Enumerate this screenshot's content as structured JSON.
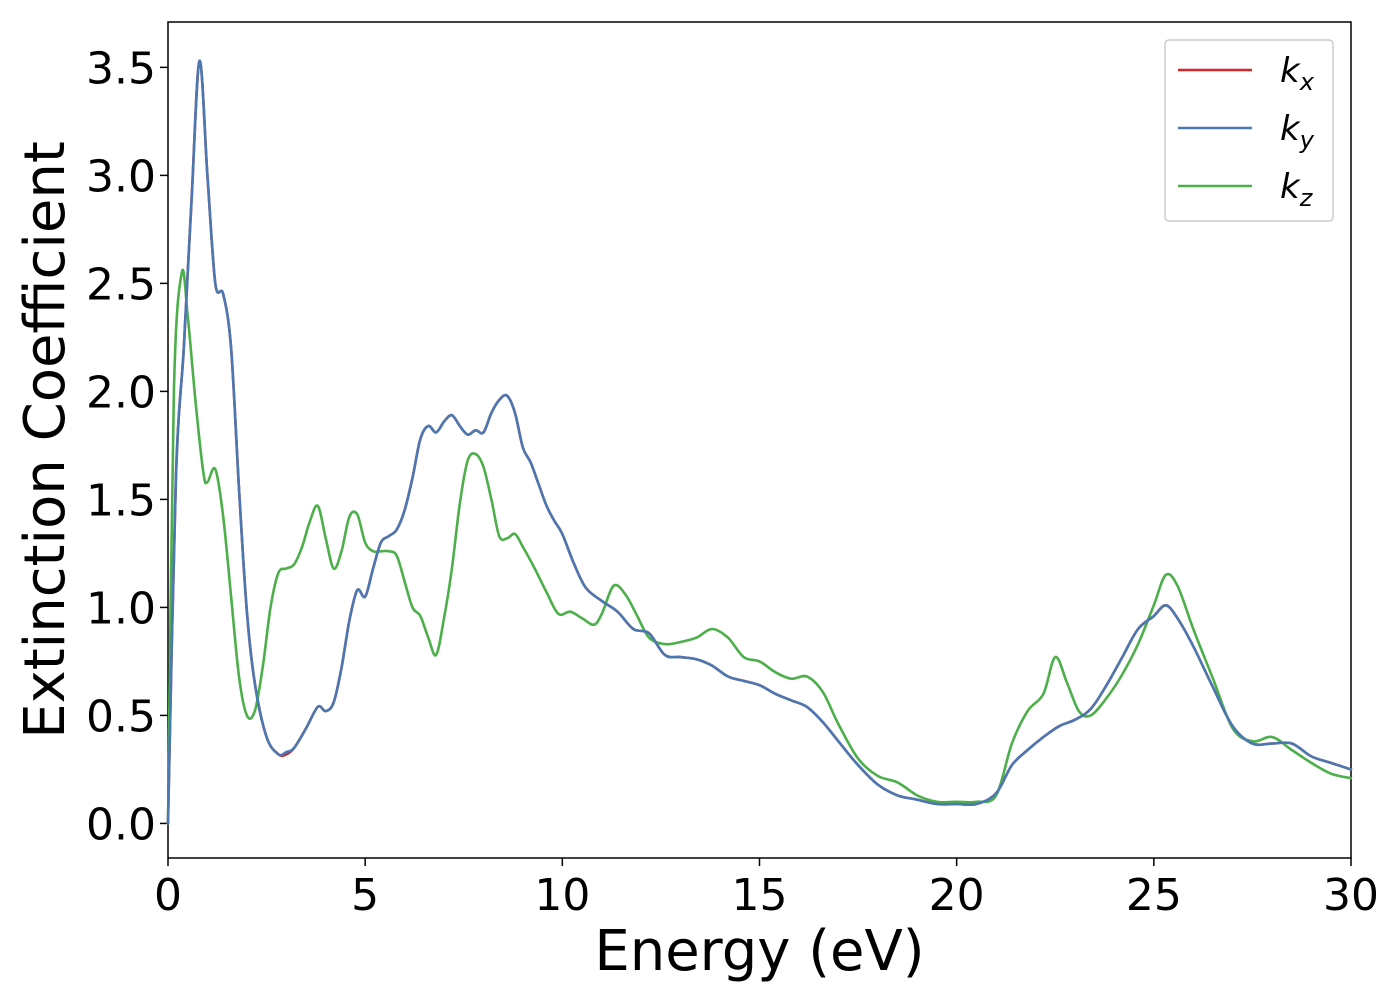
{
  "chart_data": {
    "type": "line",
    "title": "",
    "xlabel": "Energy (eV)",
    "ylabel": "Extinction Coefficient",
    "xlim": [
      0,
      30
    ],
    "ylim": [
      -0.16,
      3.71
    ],
    "xticks": [
      0,
      5,
      10,
      15,
      20,
      25,
      30
    ],
    "xtick_labels": [
      "0",
      "5",
      "10",
      "15",
      "20",
      "25",
      "30"
    ],
    "yticks": [
      0.0,
      0.5,
      1.0,
      1.5,
      2.0,
      2.5,
      3.0,
      3.5
    ],
    "ytick_labels": [
      "0.0",
      "0.5",
      "1.0",
      "1.5",
      "2.0",
      "2.5",
      "3.0",
      "3.5"
    ],
    "grid": false,
    "legend_position": "top-right",
    "series": [
      {
        "name": "k_x",
        "base": "k",
        "sub": "x",
        "color": "#d62728",
        "x": [
          0,
          0.2,
          0.4,
          0.6,
          0.8,
          1.0,
          1.2,
          1.4,
          1.6,
          1.8,
          2.0,
          2.2,
          2.5,
          2.8,
          3.0,
          3.2,
          3.5,
          3.8,
          4.0,
          4.2,
          4.4,
          4.6,
          4.8,
          5.0,
          5.2,
          5.4,
          5.6,
          5.8,
          6.0,
          6.2,
          6.4,
          6.6,
          6.8,
          7.0,
          7.2,
          7.4,
          7.6,
          7.8,
          8.0,
          8.2,
          8.4,
          8.6,
          8.8,
          9.0,
          9.2,
          9.4,
          9.6,
          9.8,
          10.0,
          10.3,
          10.6,
          11.0,
          11.4,
          11.8,
          12.2,
          12.6,
          13.0,
          13.4,
          13.8,
          14.2,
          14.6,
          15.0,
          15.4,
          15.8,
          16.2,
          16.6,
          17.0,
          17.5,
          18.0,
          18.5,
          19.0,
          19.5,
          20.0,
          20.5,
          21.0,
          21.4,
          21.8,
          22.2,
          22.6,
          23.0,
          23.4,
          23.8,
          24.2,
          24.6,
          25.0,
          25.3,
          25.6,
          26.0,
          26.5,
          27.0,
          27.5,
          28.0,
          28.5,
          29.0,
          29.5,
          30.0
        ],
        "y": [
          0.0,
          1.6,
          2.2,
          2.9,
          3.53,
          3.0,
          2.5,
          2.45,
          2.2,
          1.55,
          0.98,
          0.65,
          0.4,
          0.32,
          0.32,
          0.35,
          0.44,
          0.54,
          0.52,
          0.56,
          0.72,
          0.94,
          1.08,
          1.05,
          1.18,
          1.3,
          1.33,
          1.36,
          1.45,
          1.6,
          1.78,
          1.84,
          1.81,
          1.86,
          1.89,
          1.84,
          1.8,
          1.82,
          1.81,
          1.9,
          1.96,
          1.98,
          1.9,
          1.74,
          1.67,
          1.57,
          1.47,
          1.4,
          1.34,
          1.2,
          1.09,
          1.03,
          0.98,
          0.9,
          0.88,
          0.78,
          0.77,
          0.76,
          0.73,
          0.68,
          0.66,
          0.64,
          0.6,
          0.57,
          0.54,
          0.47,
          0.38,
          0.27,
          0.18,
          0.13,
          0.11,
          0.09,
          0.09,
          0.09,
          0.14,
          0.27,
          0.34,
          0.4,
          0.45,
          0.48,
          0.53,
          0.64,
          0.77,
          0.9,
          0.96,
          1.01,
          0.95,
          0.82,
          0.63,
          0.45,
          0.37,
          0.37,
          0.37,
          0.31,
          0.28,
          0.25
        ]
      },
      {
        "name": "k_y",
        "base": "k",
        "sub": "y",
        "color": "#4a78b2",
        "x": [
          0,
          0.2,
          0.4,
          0.6,
          0.8,
          1.0,
          1.2,
          1.4,
          1.6,
          1.8,
          2.0,
          2.2,
          2.5,
          2.8,
          3.0,
          3.2,
          3.5,
          3.8,
          4.0,
          4.2,
          4.4,
          4.6,
          4.8,
          5.0,
          5.2,
          5.4,
          5.6,
          5.8,
          6.0,
          6.2,
          6.4,
          6.6,
          6.8,
          7.0,
          7.2,
          7.4,
          7.6,
          7.8,
          8.0,
          8.2,
          8.4,
          8.6,
          8.8,
          9.0,
          9.2,
          9.4,
          9.6,
          9.8,
          10.0,
          10.3,
          10.6,
          11.0,
          11.4,
          11.8,
          12.2,
          12.6,
          13.0,
          13.4,
          13.8,
          14.2,
          14.6,
          15.0,
          15.4,
          15.8,
          16.2,
          16.6,
          17.0,
          17.5,
          18.0,
          18.5,
          19.0,
          19.5,
          20.0,
          20.5,
          21.0,
          21.4,
          21.8,
          22.2,
          22.6,
          23.0,
          23.4,
          23.8,
          24.2,
          24.6,
          25.0,
          25.3,
          25.6,
          26.0,
          26.5,
          27.0,
          27.5,
          28.0,
          28.5,
          29.0,
          29.5,
          30.0
        ],
        "y": [
          0.0,
          1.6,
          2.2,
          2.9,
          3.53,
          3.0,
          2.5,
          2.45,
          2.2,
          1.55,
          0.98,
          0.65,
          0.4,
          0.32,
          0.33,
          0.35,
          0.44,
          0.54,
          0.52,
          0.56,
          0.72,
          0.94,
          1.08,
          1.05,
          1.18,
          1.3,
          1.33,
          1.36,
          1.45,
          1.6,
          1.78,
          1.84,
          1.81,
          1.86,
          1.89,
          1.84,
          1.8,
          1.82,
          1.81,
          1.9,
          1.96,
          1.98,
          1.9,
          1.74,
          1.67,
          1.57,
          1.47,
          1.4,
          1.34,
          1.2,
          1.09,
          1.03,
          0.98,
          0.9,
          0.88,
          0.78,
          0.77,
          0.76,
          0.73,
          0.68,
          0.66,
          0.64,
          0.6,
          0.57,
          0.54,
          0.47,
          0.38,
          0.27,
          0.18,
          0.13,
          0.11,
          0.09,
          0.09,
          0.09,
          0.14,
          0.27,
          0.34,
          0.4,
          0.45,
          0.48,
          0.53,
          0.64,
          0.77,
          0.9,
          0.96,
          1.01,
          0.95,
          0.82,
          0.63,
          0.45,
          0.37,
          0.37,
          0.37,
          0.31,
          0.28,
          0.25
        ]
      },
      {
        "name": "k_z",
        "base": "k",
        "sub": "z",
        "color": "#4daf4a",
        "x": [
          0,
          0.15,
          0.35,
          0.5,
          0.7,
          0.9,
          1.0,
          1.2,
          1.4,
          1.6,
          1.8,
          2.0,
          2.2,
          2.4,
          2.6,
          2.8,
          3.0,
          3.2,
          3.4,
          3.6,
          3.8,
          4.0,
          4.2,
          4.4,
          4.6,
          4.8,
          5.0,
          5.2,
          5.4,
          5.6,
          5.8,
          6.0,
          6.2,
          6.4,
          6.6,
          6.8,
          7.0,
          7.2,
          7.4,
          7.6,
          7.8,
          8.0,
          8.2,
          8.4,
          8.6,
          8.8,
          9.0,
          9.3,
          9.6,
          9.9,
          10.2,
          10.5,
          10.8,
          11.0,
          11.3,
          11.6,
          11.9,
          12.2,
          12.6,
          13.0,
          13.4,
          13.8,
          14.2,
          14.6,
          15.0,
          15.4,
          15.8,
          16.2,
          16.6,
          17.0,
          17.5,
          18.0,
          18.5,
          19.0,
          19.5,
          20.0,
          20.5,
          21.0,
          21.4,
          21.8,
          22.2,
          22.5,
          22.8,
          23.1,
          23.4,
          23.8,
          24.2,
          24.6,
          25.0,
          25.3,
          25.6,
          26.0,
          26.5,
          27.0,
          27.5,
          28.0,
          28.5,
          29.0,
          29.5,
          30.0
        ],
        "y": [
          0.0,
          2.0,
          2.55,
          2.35,
          1.95,
          1.62,
          1.58,
          1.64,
          1.42,
          1.05,
          0.68,
          0.5,
          0.52,
          0.72,
          1.0,
          1.16,
          1.18,
          1.2,
          1.28,
          1.4,
          1.47,
          1.32,
          1.18,
          1.26,
          1.42,
          1.43,
          1.3,
          1.26,
          1.26,
          1.26,
          1.24,
          1.12,
          1.0,
          0.96,
          0.86,
          0.78,
          0.95,
          1.18,
          1.48,
          1.68,
          1.71,
          1.65,
          1.5,
          1.33,
          1.32,
          1.34,
          1.28,
          1.18,
          1.07,
          0.97,
          0.98,
          0.95,
          0.92,
          0.97,
          1.1,
          1.06,
          0.96,
          0.86,
          0.83,
          0.84,
          0.86,
          0.9,
          0.86,
          0.77,
          0.75,
          0.7,
          0.67,
          0.68,
          0.61,
          0.46,
          0.3,
          0.22,
          0.19,
          0.13,
          0.1,
          0.1,
          0.1,
          0.13,
          0.37,
          0.52,
          0.6,
          0.77,
          0.65,
          0.52,
          0.5,
          0.58,
          0.69,
          0.83,
          1.01,
          1.15,
          1.1,
          0.9,
          0.67,
          0.44,
          0.38,
          0.4,
          0.34,
          0.28,
          0.23,
          0.21
        ]
      }
    ]
  }
}
